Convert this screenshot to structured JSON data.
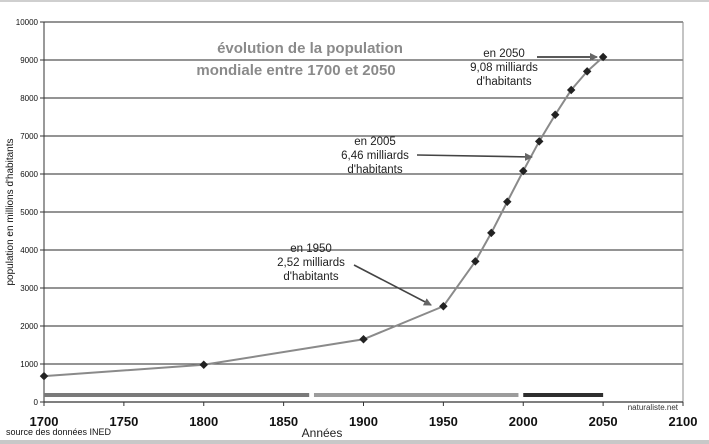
{
  "chart_data": {
    "type": "line",
    "title": "évolution de la population mondiale entre 1700 et 2050",
    "title_lines": [
      "évolution de la population",
      "mondiale entre 1700 et 2050"
    ],
    "xlabel": "Années",
    "ylabel": "population en millions d'habitants",
    "xlim": [
      1700,
      2100
    ],
    "ylim": [
      0,
      10000
    ],
    "x_ticks": [
      1700,
      1750,
      1800,
      1850,
      1900,
      1950,
      2000,
      2050,
      2100
    ],
    "y_ticks": [
      0,
      1000,
      2000,
      3000,
      4000,
      5000,
      6000,
      7000,
      8000,
      9000,
      10000
    ],
    "grid": "horizontal",
    "series": [
      {
        "name": "population mondiale",
        "color": "#8a8a8a",
        "marker_color": "#222222",
        "x": [
          1700,
          1800,
          1900,
          1950,
          1970,
          1980,
          1990,
          2000,
          2010,
          2020,
          2030,
          2040,
          2050
        ],
        "values": [
          680,
          980,
          1650,
          2520,
          3700,
          4450,
          5270,
          6080,
          6860,
          7560,
          8210,
          8700,
          9080
        ]
      }
    ],
    "annotations": [
      {
        "lines": [
          "en 1950",
          "2,52 milliards",
          "d'habitants"
        ],
        "target_year": 1950,
        "target_value": 2520
      },
      {
        "lines": [
          "en 2005",
          "6,46 milliards",
          "d'habitants"
        ],
        "target_year": 2005,
        "target_value": 6460
      },
      {
        "lines": [
          "en 2050",
          "9,08 milliards",
          "d'habitants"
        ],
        "target_year": 2050,
        "target_value": 9080
      }
    ],
    "period_bars": [
      {
        "from": 1700,
        "to": 1866,
        "color": "#7a7a7a"
      },
      {
        "from": 1869,
        "to": 1997,
        "color": "#9c9c9c"
      },
      {
        "from": 2000,
        "to": 2050,
        "color": "#2e2e2e"
      }
    ],
    "source": "source des données INED",
    "credit": "naturaliste.net"
  }
}
